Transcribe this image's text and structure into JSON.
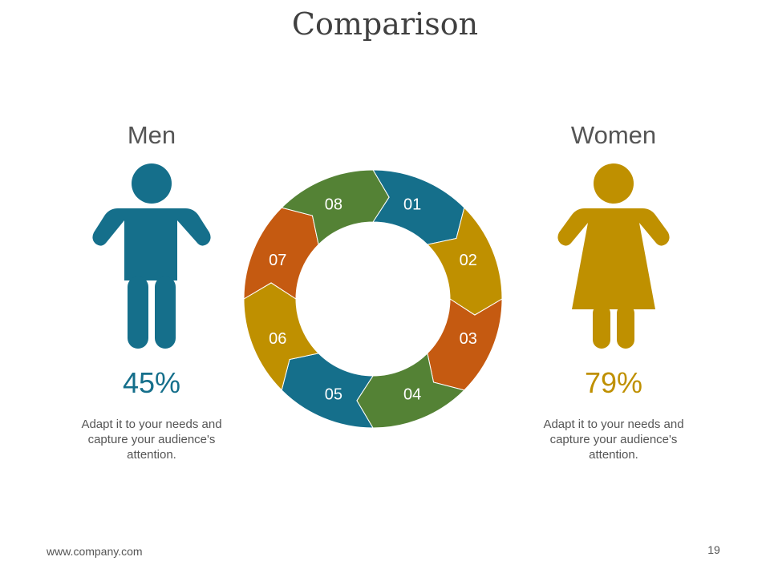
{
  "title": "Comparison",
  "colors": {
    "blue": "#156F8B",
    "gold": "#BF9000",
    "orange": "#C55A11",
    "green": "#548235",
    "text_gray": "#555555"
  },
  "men": {
    "heading": "Men",
    "icon": "male-figure-icon",
    "percent": "45%",
    "caption_lines": [
      "Adapt it to your needs and",
      "capture your audience's",
      "attention."
    ]
  },
  "women": {
    "heading": "Women",
    "icon": "female-figure-icon",
    "percent": "79%",
    "caption_lines": [
      "Adapt it to your needs and",
      "capture your audience's",
      "attention."
    ]
  },
  "cycle": {
    "segments": [
      {
        "label": "01",
        "color": "#156F8B"
      },
      {
        "label": "02",
        "color": "#BF9000"
      },
      {
        "label": "03",
        "color": "#C55A11"
      },
      {
        "label": "04",
        "color": "#548235"
      },
      {
        "label": "05",
        "color": "#156F8B"
      },
      {
        "label": "06",
        "color": "#BF9000"
      },
      {
        "label": "07",
        "color": "#C55A11"
      },
      {
        "label": "08",
        "color": "#548235"
      }
    ]
  },
  "footer": {
    "url": "www.company.com",
    "page_number": "19"
  }
}
